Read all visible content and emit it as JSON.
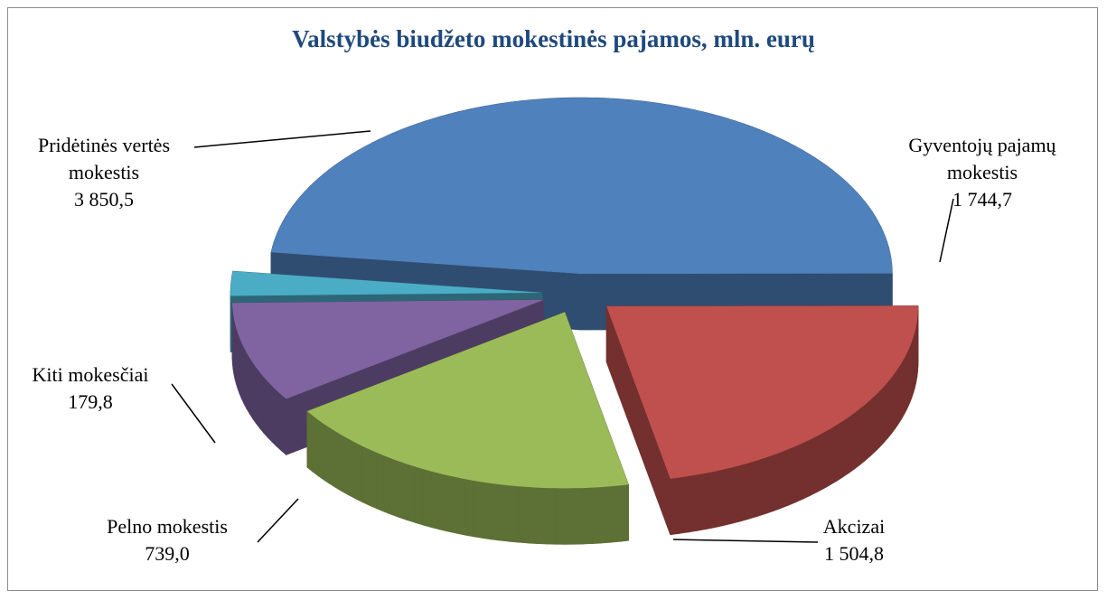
{
  "chart_data": {
    "type": "pie3d",
    "title": "Valstybės biudžeto mokestinės pajamos, mln. eurų",
    "categories": [
      "Pridėtinės vertės mokestis",
      "Gyventojų pajamų mokestis",
      "Akcizai",
      "Pelno mokestis",
      "Kiti mokesčiai"
    ],
    "values": [
      3850.5,
      1744.7,
      1504.8,
      739.0,
      179.8
    ],
    "value_labels": [
      "3 850,5",
      "1 744,7",
      "1 504,8",
      "739,0",
      "179,8"
    ],
    "colors": [
      "#4f81bd",
      "#c0504d",
      "#9bbb59",
      "#8064a2",
      "#4bacc6"
    ]
  }
}
